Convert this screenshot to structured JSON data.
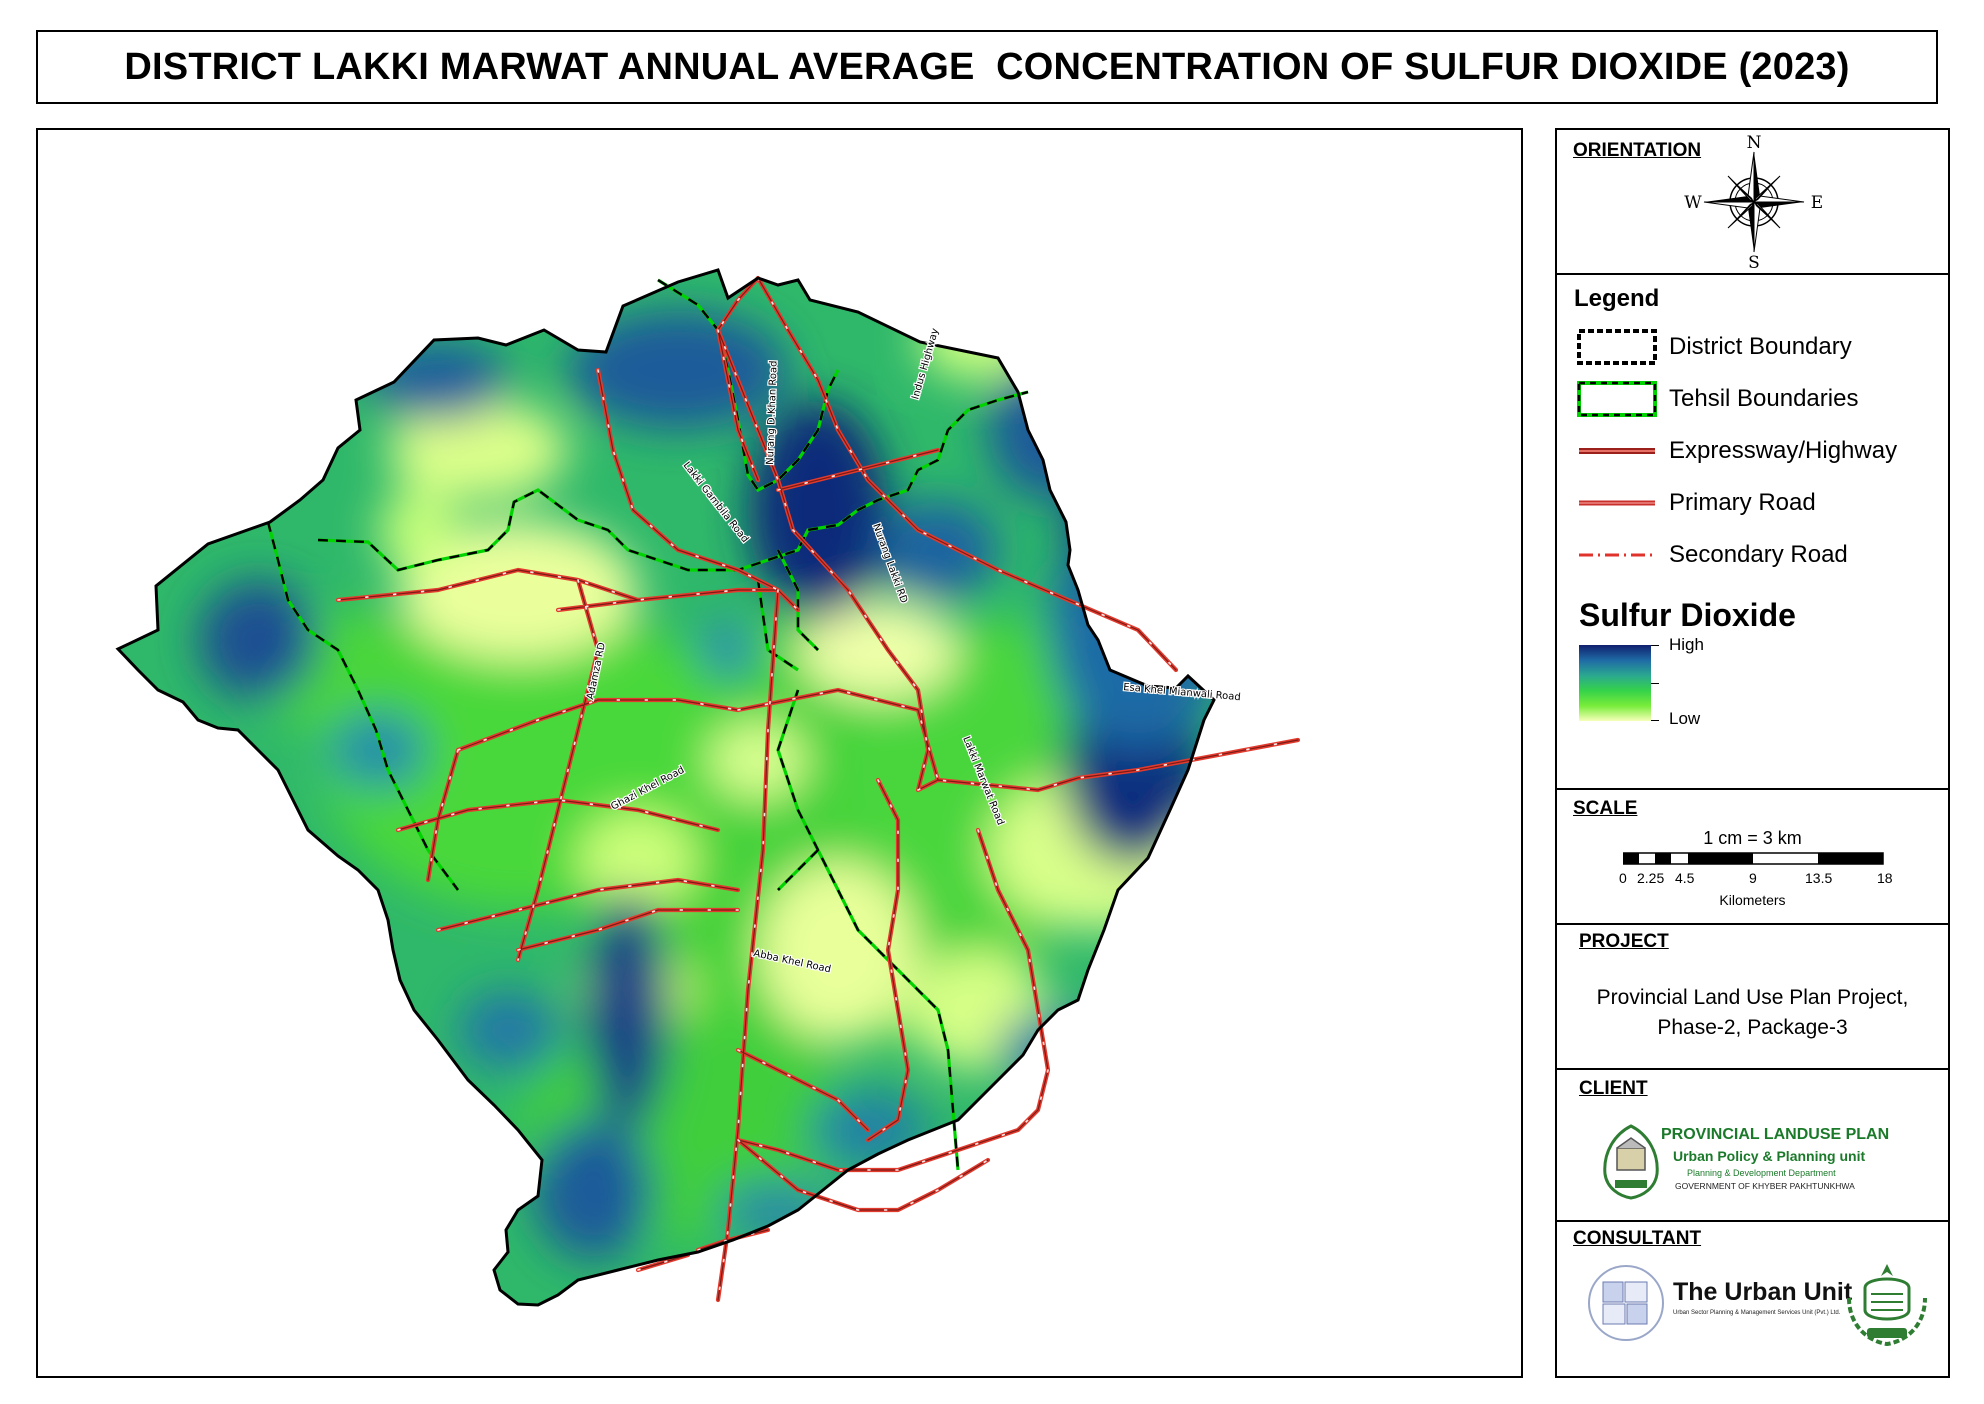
{
  "title": "DISTRICT LAKKI MARWAT ANNUAL AVERAGE  CONCENTRATION OF SULFUR DIOXIDE (2023)",
  "orientation": {
    "heading": "ORIENTATION",
    "n": "N",
    "s": "S",
    "e": "E",
    "w": "W"
  },
  "legend": {
    "heading": "Legend",
    "items": [
      {
        "label": "District Boundary",
        "icon": "district-boundary-symbol"
      },
      {
        "label": "Tehsil Boundaries",
        "icon": "tehsil-boundary-symbol"
      },
      {
        "label": "Expressway/Highway",
        "icon": "expressway-symbol"
      },
      {
        "label": "Primary Road",
        "icon": "primary-road-symbol"
      },
      {
        "label": "Secondary Road",
        "icon": "secondary-road-symbol"
      }
    ],
    "layer_title": "Sulfur Dioxide",
    "high_label": "High",
    "low_label": "Low",
    "colors": {
      "high": "#10206e",
      "mid": "#35d24a",
      "low": "#f6ffb8"
    }
  },
  "scale": {
    "heading": "SCALE",
    "ratio": "1 cm = 3 km",
    "ticks": [
      "0",
      "2.25",
      "4.5",
      "9",
      "13.5",
      "18"
    ],
    "units": "Kilometers"
  },
  "project": {
    "heading": "PROJECT",
    "line1": "Provincial Land Use Plan Project,",
    "line2": "Phase-2, Package-3"
  },
  "client": {
    "heading": "CLIENT",
    "logo_line1": "PROVINCIAL  LANDUSE PLAN",
    "logo_line2": "Urban Policy & Planning unit",
    "logo_line3": "Planning & Development Department",
    "logo_line4": "GOVERNMENT OF KHYBER PAKHTUNKHWA"
  },
  "consultant": {
    "heading": "CONSULTANT",
    "name": "The Urban Unit",
    "subtitle": "Urban Sector Planning & Management Services Unit (Pvt.) Ltd."
  },
  "roads": {
    "r1": "Lakki Gambila Road",
    "r2": "Nurang D.Khan Road",
    "r3": "Indus Highway",
    "r4": "Nurang Lakki RD",
    "r5": "Adamza RD",
    "r6": "Esa Khel Mianwali Road",
    "r7": "Lakki Marwat Road",
    "r8": "Ghazi Khel Road",
    "r9": "Abba Khel Road"
  }
}
